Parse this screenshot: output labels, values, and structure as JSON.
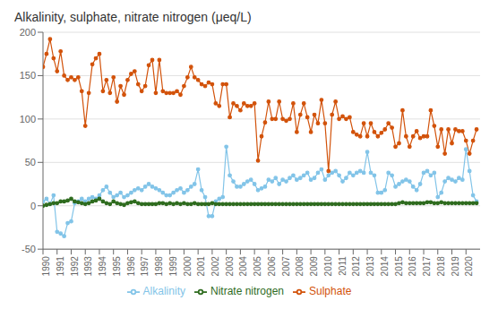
{
  "chart_data": {
    "type": "line",
    "title": "Alkalinity, sulphate, nitrate nitrogen (μeq/L)",
    "x": [
      1990,
      1990.25,
      1990.5,
      1990.75,
      1991,
      1991.25,
      1991.5,
      1991.75,
      1992,
      1992.25,
      1992.5,
      1992.75,
      1993,
      1993.25,
      1993.5,
      1993.75,
      1994,
      1994.25,
      1994.5,
      1994.75,
      1995,
      1995.25,
      1995.5,
      1995.75,
      1996,
      1996.25,
      1996.5,
      1996.75,
      1997,
      1997.25,
      1997.5,
      1997.75,
      1998,
      1998.25,
      1998.5,
      1998.75,
      1999,
      1999.25,
      1999.5,
      1999.75,
      2000,
      2000.25,
      2000.5,
      2000.75,
      2001,
      2001.25,
      2001.5,
      2001.75,
      2002,
      2002.25,
      2002.5,
      2002.75,
      2003,
      2003.25,
      2003.5,
      2003.75,
      2004,
      2004.25,
      2004.5,
      2004.75,
      2005,
      2005.25,
      2005.5,
      2005.75,
      2006,
      2006.25,
      2006.5,
      2006.75,
      2007,
      2007.25,
      2007.5,
      2007.75,
      2008,
      2008.25,
      2008.5,
      2008.75,
      2009,
      2009.25,
      2009.5,
      2009.75,
      2010,
      2010.25,
      2010.5,
      2010.75,
      2011,
      2011.25,
      2011.5,
      2011.75,
      2012,
      2012.25,
      2012.5,
      2012.75,
      2013,
      2013.25,
      2013.5,
      2013.75,
      2014,
      2014.25,
      2014.5,
      2014.75,
      2015,
      2015.25,
      2015.5,
      2015.75,
      2016,
      2016.25,
      2016.5,
      2016.75,
      2017,
      2017.25,
      2017.5,
      2017.75,
      2018,
      2018.25,
      2018.5,
      2018.75,
      2019,
      2019.25,
      2019.5,
      2019.75,
      2020,
      2020.25,
      2020.5,
      2020.75
    ],
    "series": [
      {
        "name": "Alkalinity",
        "color": "#82C4E8",
        "marker": "circle",
        "values": [
          5,
          8,
          2,
          12,
          -30,
          -32,
          -35,
          -20,
          -18,
          3,
          5,
          8,
          5,
          8,
          10,
          8,
          12,
          18,
          22,
          15,
          10,
          12,
          15,
          10,
          12,
          15,
          18,
          20,
          18,
          22,
          25,
          22,
          20,
          18,
          15,
          12,
          12,
          15,
          18,
          20,
          15,
          18,
          22,
          25,
          42,
          18,
          10,
          -12,
          -12,
          5,
          8,
          10,
          68,
          35,
          28,
          22,
          22,
          25,
          28,
          30,
          25,
          18,
          20,
          22,
          30,
          28,
          32,
          25,
          30,
          28,
          32,
          35,
          30,
          32,
          35,
          38,
          30,
          32,
          38,
          42,
          30,
          35,
          38,
          40,
          35,
          28,
          32,
          38,
          35,
          38,
          40,
          38,
          62,
          38,
          35,
          15,
          15,
          18,
          38,
          35,
          22,
          25,
          28,
          30,
          28,
          22,
          18,
          25,
          38,
          40,
          35,
          38,
          10,
          15,
          28,
          32,
          30,
          28,
          32,
          30,
          65,
          40,
          12,
          5
        ]
      },
      {
        "name": "Sulphate",
        "color": "#D2520A",
        "marker": "circle",
        "values": [
          160,
          175,
          192,
          170,
          155,
          178,
          150,
          145,
          148,
          145,
          148,
          132,
          92,
          130,
          163,
          170,
          175,
          132,
          145,
          130,
          148,
          120,
          138,
          128,
          145,
          152,
          155,
          140,
          132,
          138,
          162,
          168,
          130,
          168,
          132,
          130,
          130,
          130,
          132,
          128,
          138,
          148,
          160,
          148,
          145,
          140,
          138,
          142,
          140,
          118,
          115,
          140,
          140,
          102,
          118,
          115,
          110,
          118,
          115,
          115,
          118,
          52,
          80,
          96,
          120,
          100,
          100,
          120,
          100,
          98,
          100,
          118,
          85,
          105,
          118,
          102,
          85,
          105,
          95,
          122,
          95,
          40,
          105,
          120,
          100,
          103,
          100,
          102,
          85,
          82,
          80,
          95,
          80,
          95,
          85,
          80,
          84,
          88,
          95,
          90,
          68,
          72,
          110,
          80,
          68,
          80,
          86,
          78,
          80,
          80,
          110,
          92,
          68,
          88,
          60,
          88,
          72,
          88,
          86,
          86,
          75,
          60,
          75,
          88
        ]
      },
      {
        "name": "Nitrate nitrogen",
        "color": "#2E6B1E",
        "marker": "circle",
        "values": [
          0,
          1,
          2,
          3,
          3,
          5,
          5,
          6,
          8,
          5,
          4,
          3,
          2,
          3,
          5,
          6,
          8,
          5,
          3,
          2,
          5,
          3,
          2,
          1,
          3,
          4,
          5,
          3,
          2,
          2,
          2,
          2,
          2,
          3,
          3,
          2,
          3,
          2,
          3,
          2,
          3,
          2,
          2,
          3,
          2,
          2,
          2,
          2,
          3,
          2,
          2,
          2,
          2,
          2,
          2,
          2,
          2,
          2,
          2,
          2,
          2,
          2,
          2,
          2,
          2,
          2,
          2,
          2,
          2,
          2,
          2,
          2,
          2,
          2,
          2,
          2,
          2,
          2,
          2,
          2,
          2,
          2,
          2,
          2,
          2,
          2,
          2,
          2,
          2,
          2,
          2,
          2,
          2,
          2,
          2,
          2,
          2,
          2,
          2,
          2,
          2,
          3,
          4,
          3,
          3,
          3,
          3,
          3,
          3,
          4,
          4,
          3,
          3,
          4,
          3,
          3,
          3,
          3,
          3,
          3,
          3,
          3,
          3,
          3
        ]
      }
    ],
    "xlim": [
      1990,
      2021
    ],
    "xticks": [
      1990,
      1991,
      1992,
      1993,
      1994,
      1995,
      1996,
      1997,
      1998,
      1999,
      2000,
      2001,
      2002,
      2003,
      2004,
      2005,
      2006,
      2007,
      2008,
      2009,
      2010,
      2011,
      2012,
      2013,
      2014,
      2015,
      2016,
      2017,
      2018,
      2019,
      2020
    ],
    "ylim": [
      -50,
      200
    ],
    "yticks": [
      -50,
      0,
      50,
      100,
      150,
      200
    ],
    "grid": true,
    "legend": "bottom"
  }
}
